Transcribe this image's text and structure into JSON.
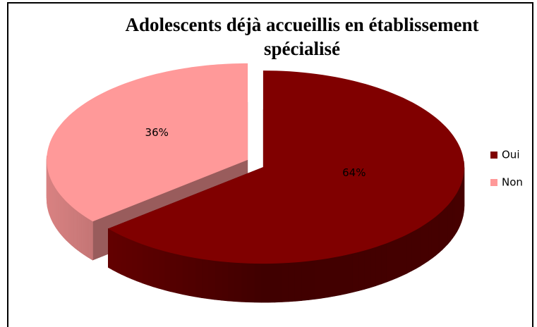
{
  "chart_data": {
    "type": "pie3d",
    "title": "Adolescents déjà accueillis en établissement spécialisé",
    "categories": [
      "Oui",
      "Non"
    ],
    "values": [
      64,
      36
    ],
    "value_labels": [
      "64%",
      "36%"
    ],
    "colors": [
      "#800000",
      "#ff9999"
    ],
    "legend": "right"
  }
}
